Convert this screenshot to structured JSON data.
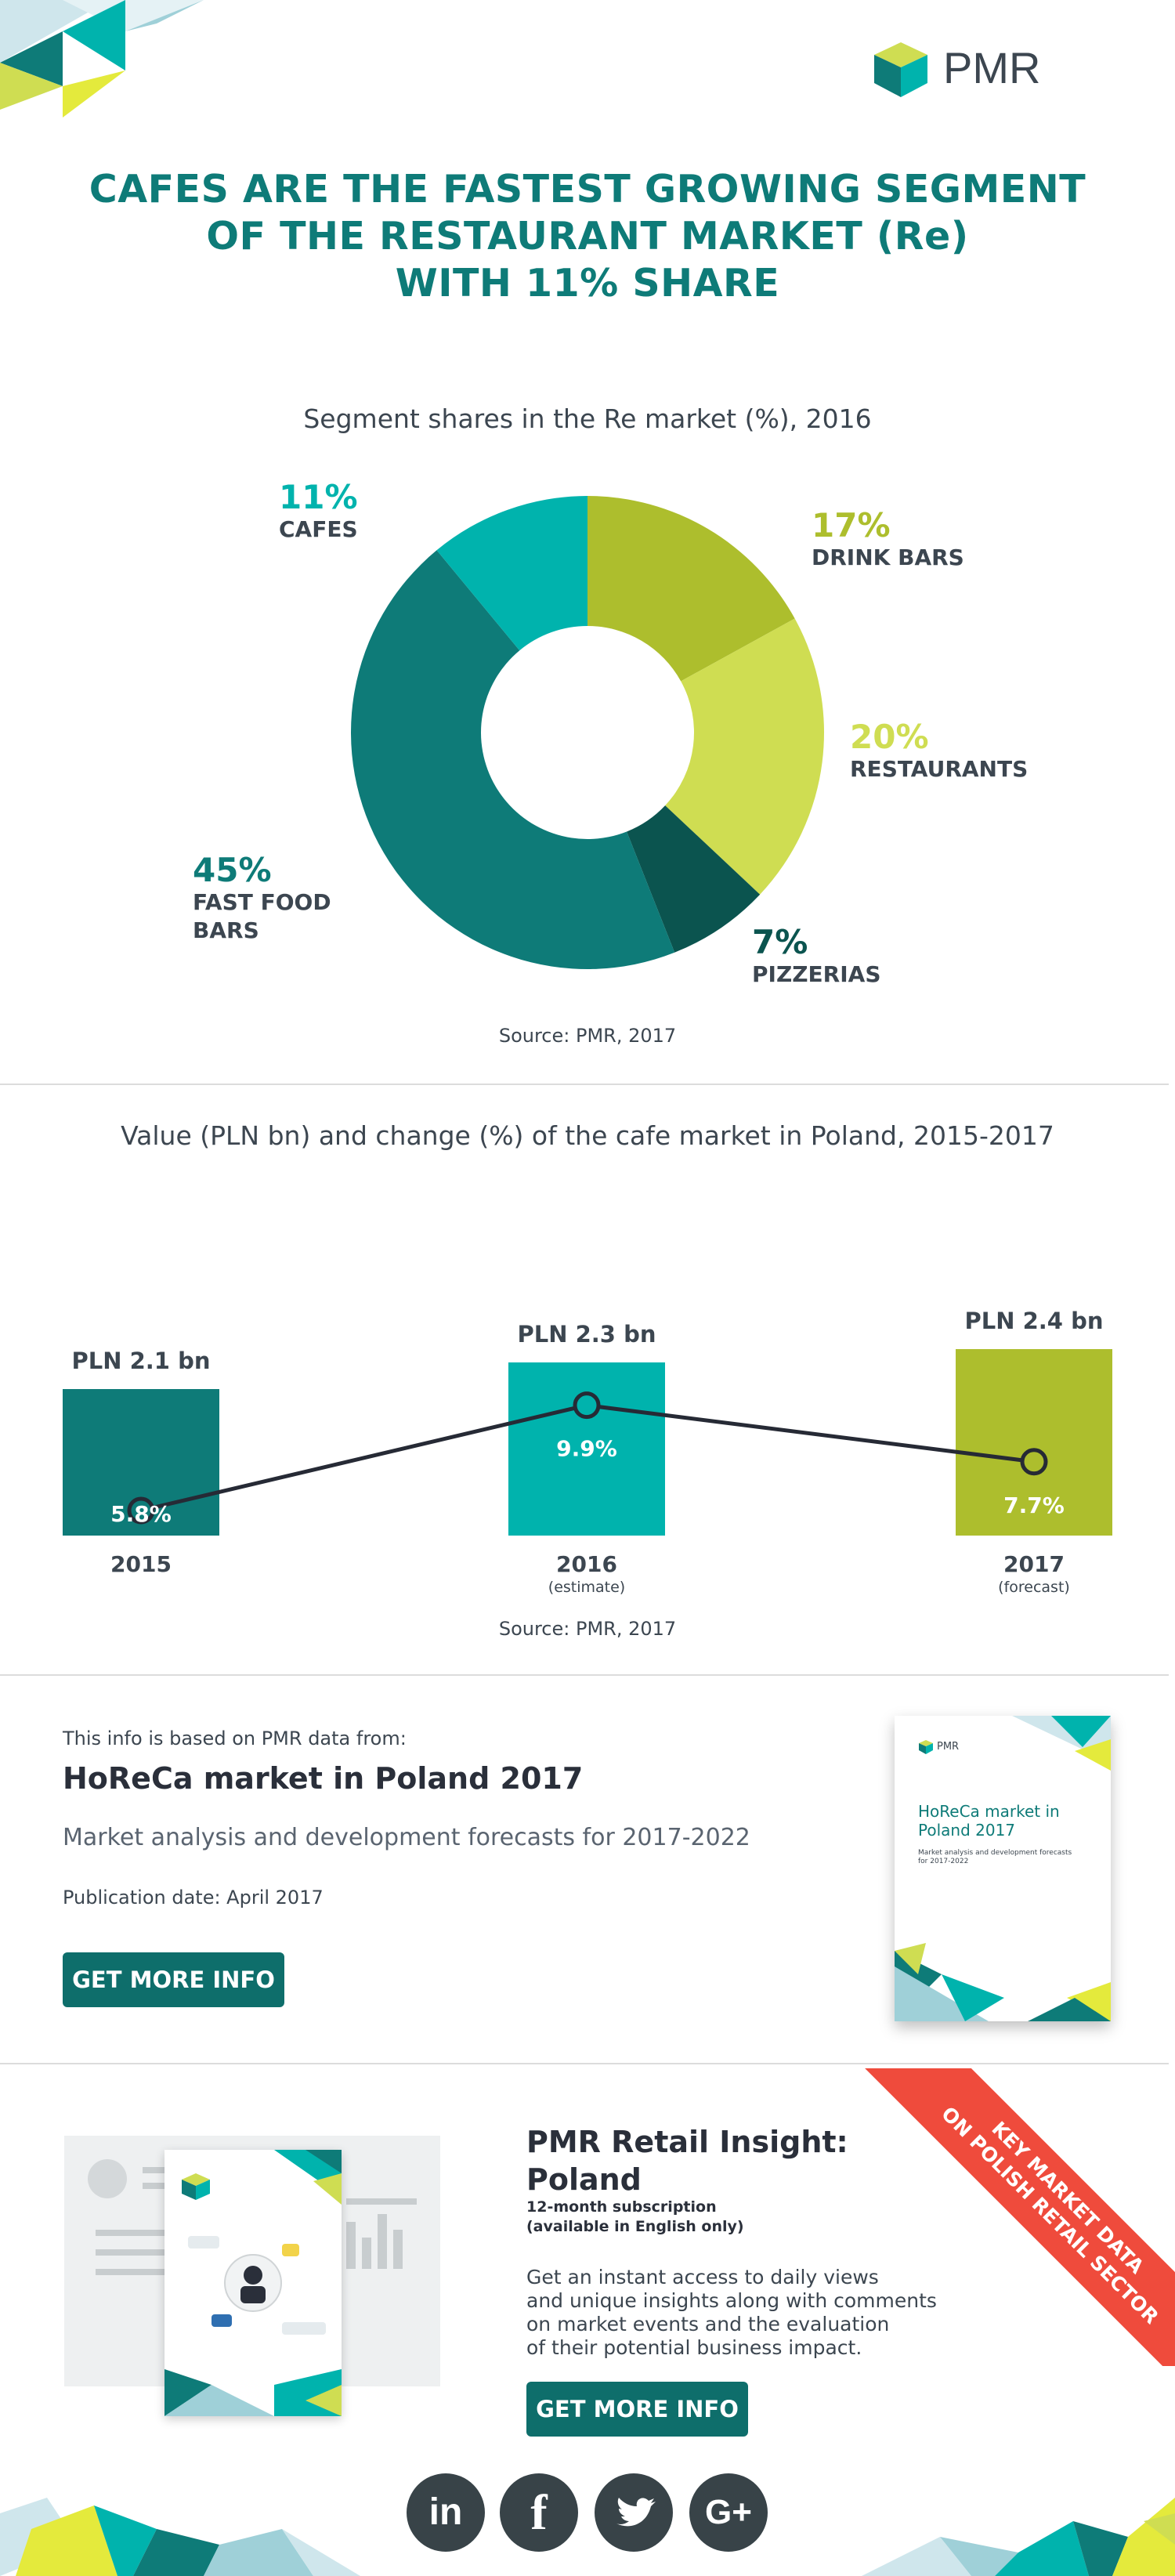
{
  "brand": {
    "name": "PMR"
  },
  "headline": [
    "CAFES ARE THE FASTEST GROWING SEGMENT",
    "OF THE RESTAURANT MARKET (Re)",
    "WITH 11% SHARE"
  ],
  "colors": {
    "teal_dark": "#0e7b78",
    "teal": "#00b3ad",
    "lime": "#adbe2d",
    "lime_light": "#cfdd52",
    "deep_green": "#0b544f",
    "text": "#3c4650",
    "red_ribbon": "#ef4b3c"
  },
  "chart_data": [
    {
      "type": "pie",
      "title": "Segment shares in the Re market (%), 2016",
      "source": "Source: PMR, 2017",
      "slices": [
        {
          "label": "DRINK BARS",
          "value": 17,
          "display": "17%",
          "color": "#adbe2d"
        },
        {
          "label": "RESTAURANTS",
          "value": 20,
          "display": "20%",
          "color": "#cfdd52"
        },
        {
          "label": "PIZZERIAS",
          "value": 7,
          "display": "7%",
          "color": "#0b544f"
        },
        {
          "label": "FAST FOOD BARS",
          "value": 45,
          "display": "45%",
          "color": "#0e7b78"
        },
        {
          "label": "CAFES",
          "value": 11,
          "display": "11%",
          "color": "#00b3ad"
        }
      ]
    },
    {
      "type": "bar",
      "title": "Value (PLN bn) and change (%) of the cafe market in Poland, 2015-2017",
      "source": "Source: PMR, 2017",
      "categories": [
        "2015",
        "2016",
        "2017"
      ],
      "category_notes": [
        "",
        "(estimate)",
        "(forecast)"
      ],
      "series": [
        {
          "values": [
            2.1,
            2.3,
            2.4
          ],
          "labels": [
            "PLN 2.1 bn",
            "PLN 2.3 bn",
            "PLN 2.4 bn"
          ],
          "colors": [
            "#0e7b78",
            "#00b3ad",
            "#adbe2d"
          ]
        },
        {
          "values": [
            5.8,
            9.9,
            7.7
          ],
          "labels": [
            "5.8%",
            "9.9%",
            "7.7%"
          ]
        }
      ]
    }
  ],
  "report": {
    "intro": "This info is based on PMR data from:",
    "title": "HoReCa market in Poland 2017",
    "subtitle": "Market analysis and development forecasts for 2017-2022",
    "pubdate": "Publication date: April 2017",
    "button": "GET MORE INFO",
    "cover_title": "HoReCa market in Poland 2017",
    "cover_sub": "Market analysis and development forecasts for 2017-2022"
  },
  "insight": {
    "title": "PMR Retail Insight: Poland",
    "sub1": "12-month subscription",
    "sub2": "(available in English only)",
    "desc": [
      "Get an instant access to daily views",
      "and unique insights along with comments",
      "on market events and the evaluation",
      "of their potential business impact."
    ],
    "button": "GET MORE INFO",
    "ribbon": [
      "KEY MARKET DATA",
      "ON POLISH RETAIL SECTOR"
    ]
  },
  "social": [
    "in",
    "f",
    "t",
    "G+"
  ],
  "social_icons": [
    "linkedin-icon",
    "facebook-icon",
    "twitter-icon",
    "google-plus-icon"
  ]
}
